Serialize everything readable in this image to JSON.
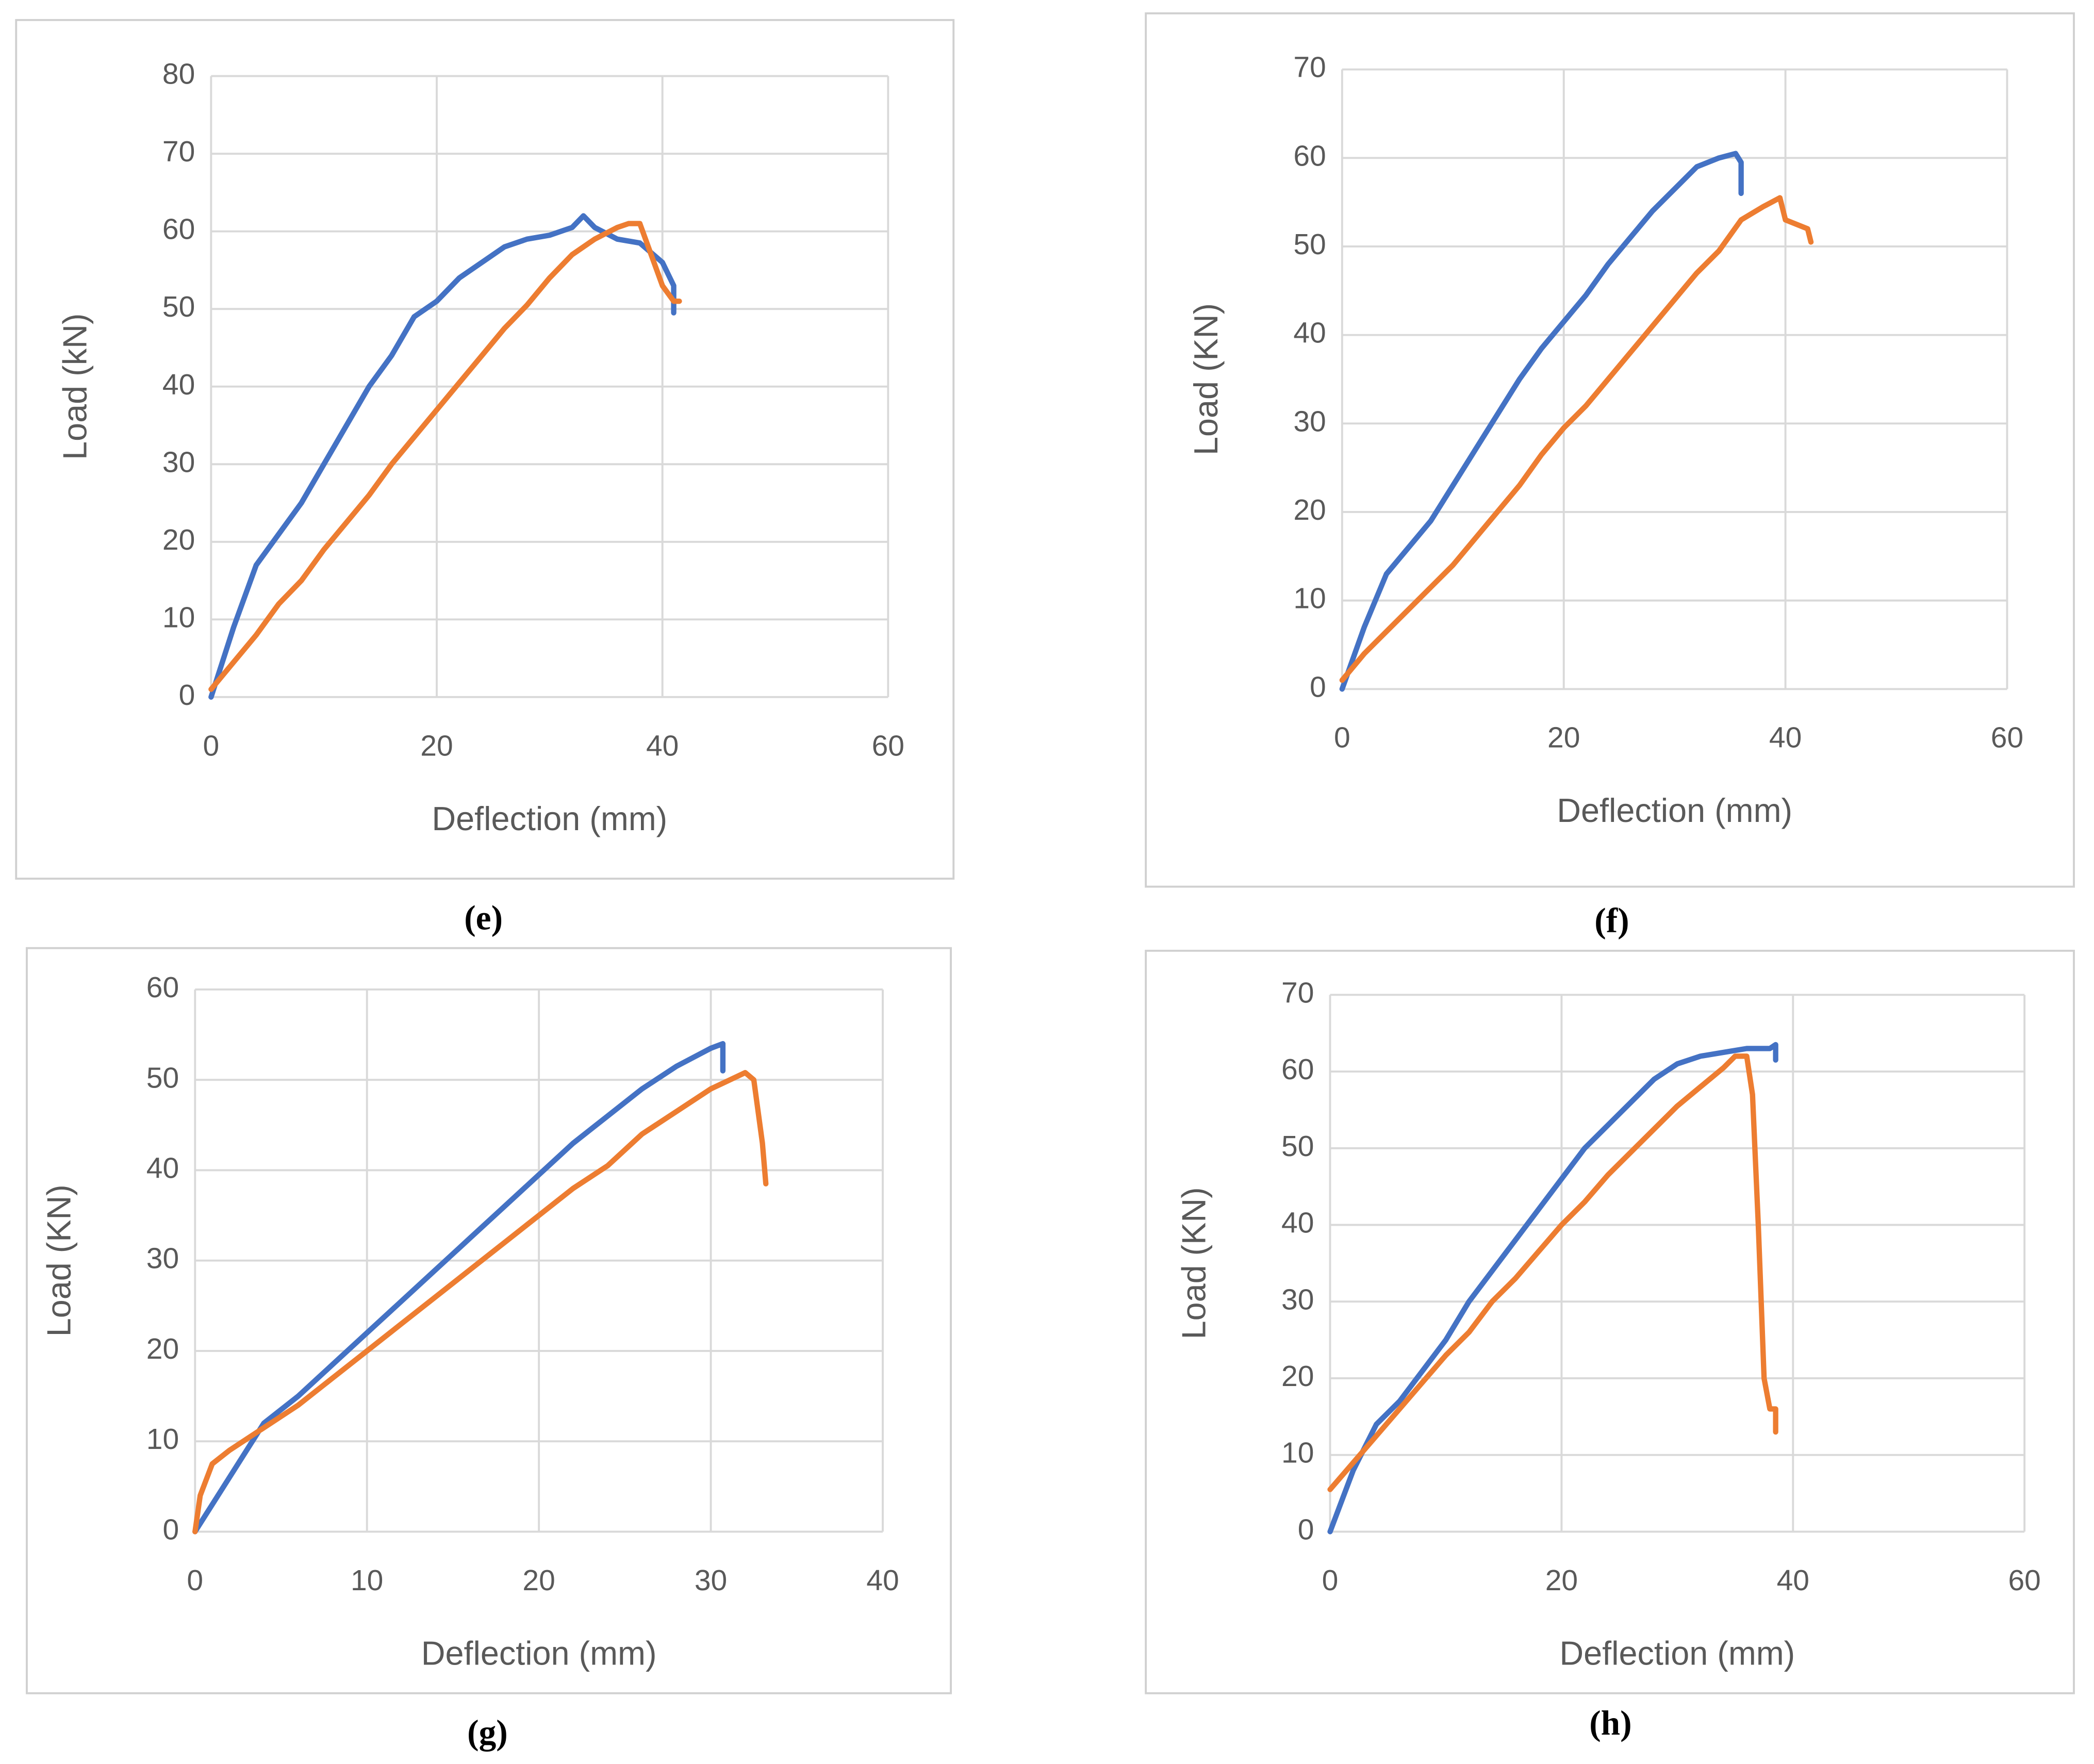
{
  "chart_data": [
    {
      "type": "line",
      "caption": "(e)",
      "xlabel": "Deflection (mm)",
      "ylabel": "Load (kN)",
      "xlim": [
        0,
        60
      ],
      "xticks": [
        0,
        20,
        40,
        60
      ],
      "ylim": [
        0,
        80
      ],
      "yticks": [
        0,
        10,
        20,
        30,
        40,
        50,
        60,
        70,
        80
      ],
      "grid": true,
      "series": [
        {
          "color": "#4472c4",
          "x": [
            0,
            2,
            4,
            6,
            8,
            10,
            12,
            14,
            16,
            18,
            20,
            22,
            24,
            26,
            28,
            30,
            32,
            33,
            34,
            36,
            38,
            40,
            41,
            41
          ],
          "values": [
            0,
            9,
            17,
            21,
            25,
            30,
            35,
            40,
            44,
            49,
            51,
            54,
            56,
            58,
            59,
            59.5,
            60.5,
            62,
            60.5,
            59,
            58.5,
            56,
            53,
            49.5
          ]
        },
        {
          "color": "#ed7d31",
          "x": [
            0,
            2,
            4,
            6,
            8,
            10,
            12,
            14,
            16,
            18,
            20,
            22,
            24,
            26,
            28,
            30,
            32,
            34,
            36,
            37,
            38,
            39,
            40,
            41,
            41.5
          ],
          "values": [
            1,
            4.5,
            8,
            12,
            15,
            19,
            22.5,
            26,
            30,
            33.5,
            37,
            40.5,
            44,
            47.5,
            50.5,
            54,
            57,
            59,
            60.5,
            61,
            61,
            57,
            53,
            51,
            51
          ]
        }
      ]
    },
    {
      "type": "line",
      "caption": "(f)",
      "xlabel": "Deflection (mm)",
      "ylabel": "Load (KN)",
      "xlim": [
        0,
        60
      ],
      "xticks": [
        0,
        20,
        40,
        60
      ],
      "ylim": [
        0,
        70
      ],
      "yticks": [
        0,
        10,
        20,
        30,
        40,
        50,
        60,
        70
      ],
      "grid": true,
      "series": [
        {
          "color": "#4472c4",
          "x": [
            0,
            2,
            4,
            6,
            8,
            10,
            12,
            14,
            16,
            18,
            20,
            22,
            24,
            26,
            28,
            30,
            32,
            34,
            35.5,
            36,
            36
          ],
          "values": [
            0,
            7,
            13,
            16,
            19,
            23,
            27,
            31,
            35,
            38.5,
            41.5,
            44.5,
            48,
            51,
            54,
            56.5,
            59,
            60,
            60.5,
            59.5,
            56
          ]
        },
        {
          "color": "#ed7d31",
          "x": [
            0,
            2,
            4,
            6,
            8,
            10,
            12,
            14,
            16,
            18,
            20,
            22,
            24,
            26,
            28,
            30,
            32,
            34,
            36,
            38,
            39.5,
            40,
            41,
            42,
            42.3
          ],
          "values": [
            1,
            4,
            6.5,
            9,
            11.5,
            14,
            17,
            20,
            23,
            26.5,
            29.5,
            32,
            35,
            38,
            41,
            44,
            47,
            49.5,
            53,
            54.5,
            55.5,
            53,
            52.5,
            52,
            50.5
          ]
        }
      ]
    },
    {
      "type": "line",
      "caption": "(g)",
      "xlabel": "Deflection (mm)",
      "ylabel": "Load (KN)",
      "xlim": [
        0,
        40
      ],
      "xticks": [
        0,
        10,
        20,
        30,
        40
      ],
      "ylim": [
        0,
        60
      ],
      "yticks": [
        0,
        10,
        20,
        30,
        40,
        50,
        60
      ],
      "grid": true,
      "series": [
        {
          "color": "#4472c4",
          "x": [
            0,
            2,
            4,
            6,
            8,
            10,
            12,
            14,
            16,
            18,
            20,
            22,
            24,
            26,
            28,
            30,
            30.7,
            30.7
          ],
          "values": [
            0,
            6,
            12,
            15,
            18.5,
            22,
            25.5,
            29,
            32.5,
            36,
            39.5,
            43,
            46,
            49,
            51.5,
            53.5,
            54,
            51
          ]
        },
        {
          "color": "#ed7d31",
          "x": [
            0,
            0.3,
            1,
            2,
            4,
            6,
            8,
            10,
            12,
            14,
            16,
            18,
            20,
            22,
            24,
            26,
            28,
            30,
            32,
            32.5,
            33,
            33.2
          ],
          "values": [
            0,
            4,
            7.5,
            9,
            11.5,
            14,
            17,
            20,
            23,
            26,
            29,
            32,
            35,
            38,
            40.5,
            44,
            46.5,
            49,
            50.8,
            50,
            43,
            38.5
          ]
        }
      ]
    },
    {
      "type": "line",
      "caption": "(h)",
      "xlabel": "Deflection (mm)",
      "ylabel": "Load (KN)",
      "xlim": [
        0,
        60
      ],
      "xticks": [
        0,
        20,
        40,
        60
      ],
      "ylim": [
        0,
        70
      ],
      "yticks": [
        0,
        10,
        20,
        30,
        40,
        50,
        60,
        70
      ],
      "grid": true,
      "series": [
        {
          "color": "#4472c4",
          "x": [
            0,
            2,
            4,
            6,
            8,
            10,
            12,
            14,
            16,
            18,
            20,
            22,
            24,
            26,
            28,
            30,
            32,
            34,
            36,
            38,
            38.5,
            38.5
          ],
          "values": [
            0,
            8,
            14,
            17,
            21,
            25,
            30,
            34,
            38,
            42,
            46,
            50,
            53,
            56,
            59,
            61,
            62,
            62.5,
            63,
            63,
            63.5,
            61.5
          ]
        },
        {
          "color": "#ed7d31",
          "x": [
            0,
            2,
            4,
            6,
            8,
            10,
            12,
            14,
            16,
            18,
            20,
            22,
            24,
            26,
            28,
            30,
            32,
            34,
            35,
            36,
            36.5,
            37,
            37.5,
            38,
            38.5,
            38.5
          ],
          "values": [
            5.5,
            9,
            12.5,
            16,
            19.5,
            23,
            26,
            30,
            33,
            36.5,
            40,
            43,
            46.5,
            49.5,
            52.5,
            55.5,
            58,
            60.5,
            62,
            62,
            57,
            40,
            20,
            16,
            16,
            13
          ]
        }
      ]
    }
  ]
}
